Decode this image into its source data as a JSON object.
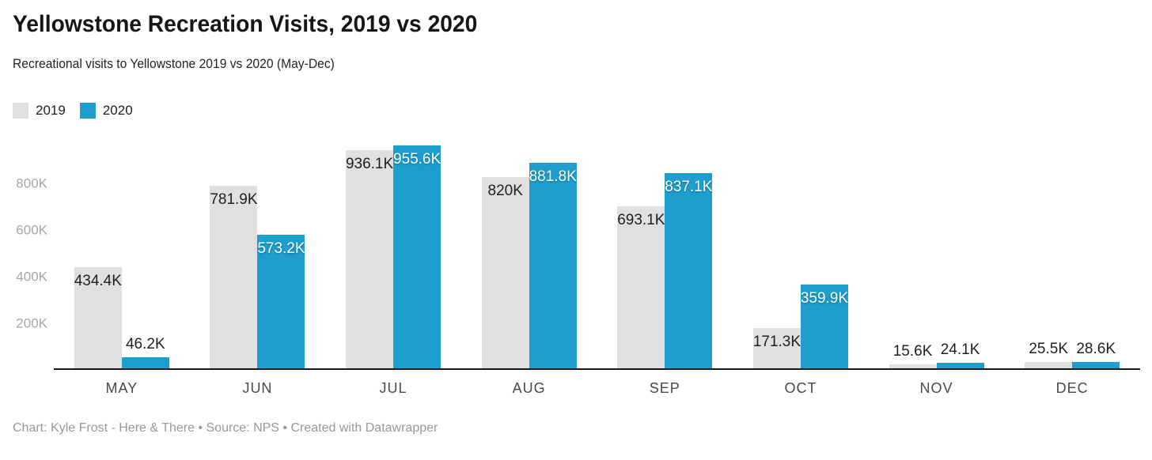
{
  "header": {
    "title": "Yellowstone Recreation Visits, 2019 vs 2020",
    "subtitle": "Recreational visits to Yellowstone 2019 vs 2020 (May-Dec)"
  },
  "legend": {
    "items": [
      {
        "label": "2019",
        "color": "#e0e0e0"
      },
      {
        "label": "2020",
        "color": "#1d9ecd"
      }
    ]
  },
  "chart_data": {
    "type": "bar",
    "title": "Yellowstone Recreation Visits, 2019 vs 2020",
    "subtitle": "Recreational visits to Yellowstone 2019 vs 2020 (May-Dec)",
    "categories": [
      "MAY",
      "JUN",
      "JUL",
      "AUG",
      "SEP",
      "OCT",
      "NOV",
      "DEC"
    ],
    "series": [
      {
        "name": "2019",
        "color": "#e0e0e0",
        "values_k": [
          434.4,
          781.9,
          936.1,
          820,
          693.1,
          171.3,
          15.6,
          25.5
        ],
        "labels": [
          "434.4K",
          "781.9K",
          "936.1K",
          "820K",
          "693.1K",
          "171.3K",
          "15.6K",
          "25.5K"
        ]
      },
      {
        "name": "2020",
        "color": "#1d9ecd",
        "values_k": [
          46.2,
          573.2,
          955.6,
          881.8,
          837.1,
          359.9,
          24.1,
          28.6
        ],
        "labels": [
          "46.2K",
          "573.2K",
          "955.6K",
          "881.8K",
          "837.1K",
          "359.9K",
          "24.1K",
          "28.6K"
        ]
      }
    ],
    "y_axis": {
      "ticks": [
        {
          "label": "200K",
          "value_k": 200
        },
        {
          "label": "400K",
          "value_k": 400
        },
        {
          "label": "600K",
          "value_k": 600
        },
        {
          "label": "800K",
          "value_k": 800
        }
      ],
      "max_value_k": 955.6
    },
    "grid": false,
    "legend_position": "top-left",
    "axis_line_color": "#191919",
    "label_color_dark": "#1f1f1f",
    "label_color_light": "#ffffff"
  },
  "footer": {
    "text": "Chart: Kyle Frost - Here & There • Source: NPS • Created with Datawrapper"
  }
}
